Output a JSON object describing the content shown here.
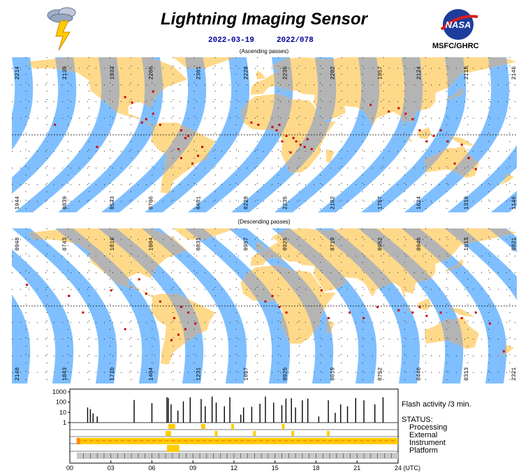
{
  "header": {
    "title": "Lightning Imaging Sensor",
    "date": "2022-03-19",
    "doy": "2022/078",
    "logo_text": "NASA",
    "org": "MSFC/GHRC"
  },
  "panels": {
    "ascending": {
      "label": "(Ascending passes)",
      "top_ticks": [
        "2214",
        "2139",
        "1933",
        "2206",
        "2301",
        "2228",
        "2235",
        "2202",
        "1957",
        "2124",
        "2118",
        "2146"
      ],
      "bottom_ticks": [
        "1944",
        "0839",
        "0533",
        "0706",
        "0401",
        "0228",
        "2235",
        "2102",
        "1757",
        "1624",
        "1318",
        "1146"
      ]
    },
    "descending": {
      "label": "(Descending passes)",
      "top_ticks": [
        "0948",
        "0743",
        "1010",
        "1004",
        "0831",
        "0957",
        "0925",
        "0719",
        "0952",
        "0946",
        "1013",
        "0821"
      ],
      "bottom_ticks": [
        "2148",
        "1843",
        "1710",
        "1404",
        "1231",
        "1057",
        "0925",
        "0619",
        "0752",
        "0446",
        "0313",
        "2321"
      ]
    }
  },
  "colors": {
    "ocean": "#7fbfff",
    "land": "#ffd98a",
    "swath_land": "#b4b4b4",
    "flash": "#cc0000",
    "status_bar": "#ffcc00",
    "status_accent": "#ff8800"
  },
  "chart_data": {
    "type": "bar",
    "title": "Flash activity /3 min.",
    "ylim": [
      1,
      1000
    ],
    "yscale": "log",
    "yticks": [
      "1000",
      "100",
      "10",
      "1"
    ],
    "x_ticks": [
      "00",
      "03",
      "06",
      "09",
      "12",
      "15",
      "18",
      "21",
      "24 (UTC)"
    ],
    "x": [
      1.3,
      1.5,
      1.7,
      2.0,
      4.7,
      6.0,
      7.1,
      7.2,
      7.4,
      7.9,
      8.3,
      8.8,
      9.6,
      9.9,
      10.4,
      10.7,
      11.3,
      11.7,
      12.5,
      12.7,
      13.3,
      13.9,
      14.3,
      14.9,
      15.5,
      15.8,
      16.2,
      16.5,
      17.0,
      17.4,
      18.2,
      18.9,
      19.4,
      19.8,
      20.3,
      20.9,
      21.5,
      22.3,
      22.9
    ],
    "values": [
      30,
      20,
      8,
      4,
      160,
      80,
      300,
      250,
      60,
      15,
      120,
      300,
      200,
      40,
      350,
      90,
      40,
      300,
      6,
      30,
      35,
      70,
      350,
      90,
      50,
      220,
      240,
      30,
      150,
      220,
      4,
      150,
      9,
      60,
      40,
      250,
      150,
      60,
      300
    ],
    "status_rows": [
      "STATUS:",
      "Processing",
      "External",
      "Instrument",
      "Platform"
    ]
  }
}
